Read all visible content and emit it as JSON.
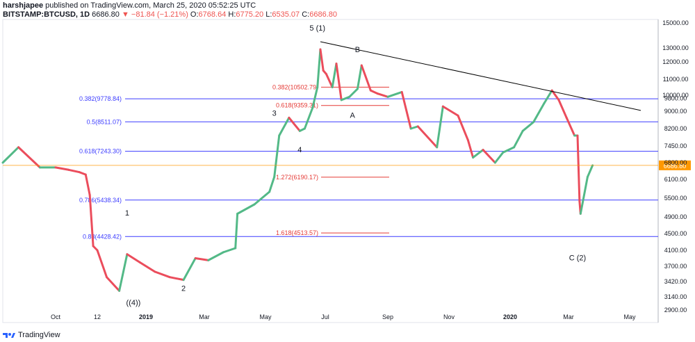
{
  "header": {
    "author": "harshjapee",
    "published_text": "published on TradingView.com, March 25, 2020 05:52:25 UTC",
    "symbol": "BITSTAMP:BTCUSD, 1D",
    "last": "6686.80",
    "change": "▼ −81.84 (−1.21%)",
    "o_label": "O:",
    "o": "6768.64",
    "h_label": "H:",
    "h": "6775.20",
    "l_label": "L:",
    "l": "6535.07",
    "c_label": "C:",
    "c": "6686.80"
  },
  "footer": {
    "brand": "TradingView"
  },
  "colors": {
    "up": "#53b987",
    "down": "#eb4d5c",
    "fib": "#3c3cff",
    "ext": "#e53935",
    "price": "#ff9800",
    "trend": "#000000"
  },
  "chart_data": {
    "type": "line",
    "series": [
      {
        "x": [
          "2018-08-25",
          "2018-09-05",
          "2018-09-20",
          "2018-10-01",
          "2018-10-20",
          "2018-11-05",
          "2018-11-14",
          "2018-11-20",
          "2018-11-25",
          "2018-12-01",
          "2018-12-07",
          "2018-12-15",
          "2018-12-20",
          "2018-12-28",
          "2019-01-10",
          "2019-01-25",
          "2019-02-08",
          "2019-02-20",
          "2019-03-05",
          "2019-03-20",
          "2019-04-01",
          "2019-04-03",
          "2019-04-20",
          "2019-05-05",
          "2019-05-10",
          "2019-05-15",
          "2019-05-25",
          "2019-06-05",
          "2019-06-10",
          "2019-06-18",
          "2019-06-23",
          "2019-06-26",
          "2019-06-29",
          "2019-07-02",
          "2019-07-08",
          "2019-07-12",
          "2019-07-17",
          "2019-07-25",
          "2019-08-02",
          "2019-08-06",
          "2019-08-15",
          "2019-08-22",
          "2019-09-01",
          "2019-09-15",
          "2019-09-24",
          "2019-10-01",
          "2019-10-20",
          "2019-10-26",
          "2019-11-10",
          "2019-11-20",
          "2019-11-25",
          "2019-12-05",
          "2019-12-17",
          "2019-12-25",
          "2020-01-05",
          "2020-01-14",
          "2020-01-25",
          "2020-02-05",
          "2020-02-13",
          "2020-02-20",
          "2020-02-28",
          "2020-03-07",
          "2020-03-10",
          "2020-03-12",
          "2020-03-13",
          "2020-03-20",
          "2020-03-25"
        ],
        "y": [
          6800,
          7400,
          6600,
          6600,
          6500,
          6400,
          6300,
          5600,
          4200,
          4100,
          3500,
          3250,
          4000,
          3800,
          3600,
          3500,
          3450,
          3900,
          3850,
          4050,
          4150,
          5000,
          5300,
          5700,
          6200,
          7900,
          8700,
          8100,
          8200,
          9200,
          10500,
          12900,
          11500,
          11300,
          10500,
          11900,
          9700,
          9900,
          10400,
          11800,
          10300,
          10100,
          9900,
          10200,
          8200,
          8300,
          7400,
          9300,
          8800,
          7700,
          7000,
          7300,
          6800,
          7200,
          7400,
          8100,
          8500,
          9500,
          10300,
          9700,
          8700,
          7900,
          7900,
          5400,
          5000,
          6200,
          6686.8
        ],
        "name": ""
      }
    ],
    "y_ticks": [
      "15000.00",
      "13000.00",
      "12000.00",
      "11000.00",
      "10000.00",
      "9800.00",
      "9000.00",
      "8200.00",
      "7450.00",
      "6800.00",
      "6100.00",
      "5500.00",
      "4900.00",
      "4500.00",
      "4100.00",
      "3700.00",
      "3420.00",
      "3140.00",
      "2900.00"
    ],
    "x_ticks": [
      "Oct",
      "12",
      "2019",
      "Mar",
      "May",
      "Jul",
      "Sep",
      "Nov",
      "2020",
      "Mar",
      "May"
    ],
    "fib_levels": [
      {
        "label": "0.382(9778.84)",
        "value": 9778.84
      },
      {
        "label": "0.5(8511.07)",
        "value": 8511.07
      },
      {
        "label": "0.618(7243.30)",
        "value": 7243.3
      },
      {
        "label": "0.786(5438.34)",
        "value": 5438.34
      },
      {
        "label": "0.88(4428.42)",
        "value": 4428.42
      }
    ],
    "ext_levels": [
      {
        "label": "0.382(10502.79)",
        "value": 10502.79
      },
      {
        "label": "0.618(9359.31)",
        "value": 9359.31
      },
      {
        "label": "1.272(6190.17)",
        "value": 6190.17
      },
      {
        "label": "1.618(4513.57)",
        "value": 4513.57
      }
    ],
    "wave_labels": [
      "5 (1)",
      "B",
      "A",
      "3",
      "4",
      "1",
      "2",
      "((4))",
      "C (2)"
    ],
    "last_price_label": "6686.80",
    "grid": false
  }
}
